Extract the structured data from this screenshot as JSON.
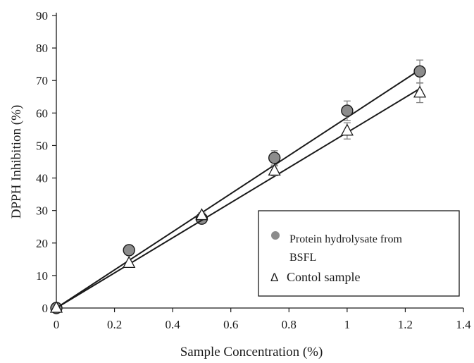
{
  "chart_data": {
    "type": "scatter",
    "title": "",
    "xlabel": "Sample Concentration (%)",
    "ylabel": "DPPH Inhibition (%)",
    "xlim": [
      0,
      1.4
    ],
    "ylim": [
      0,
      90
    ],
    "xticks": [
      "0",
      "0.2",
      "0.4",
      "0.6",
      "0.8",
      "1",
      "1.2",
      "1.4"
    ],
    "yticks": [
      "0",
      "10",
      "20",
      "30",
      "40",
      "50",
      "60",
      "70",
      "80",
      "90"
    ],
    "grid": false,
    "legend_position": "lower-right",
    "series": [
      {
        "name_lines": [
          "Protein hydrolysate from",
          "BSFL"
        ],
        "marker": "circle",
        "marker_color": "#8c8c8c",
        "x": [
          0,
          0.25,
          0.5,
          0.75,
          1.0,
          1.25
        ],
        "y": [
          0,
          17.8,
          27.5,
          46.2,
          60.7,
          72.8
        ],
        "error": [
          0,
          0,
          0.8,
          2.2,
          3.0,
          3.5
        ],
        "trendline": [
          0,
          0,
          1.25,
          73.3
        ]
      },
      {
        "name_lines": [
          "Contol sample"
        ],
        "marker": "triangle",
        "marker_color": "#ffffff",
        "legend_symbol": "Δ",
        "x": [
          0,
          0.25,
          0.5,
          0.75,
          1.0,
          1.25
        ],
        "y": [
          0,
          13.8,
          28.5,
          42.2,
          54.5,
          66.2
        ],
        "error": [
          0,
          0,
          0.8,
          1.5,
          2.5,
          3.0
        ],
        "trendline": [
          0,
          0,
          1.25,
          67.5
        ]
      }
    ]
  }
}
